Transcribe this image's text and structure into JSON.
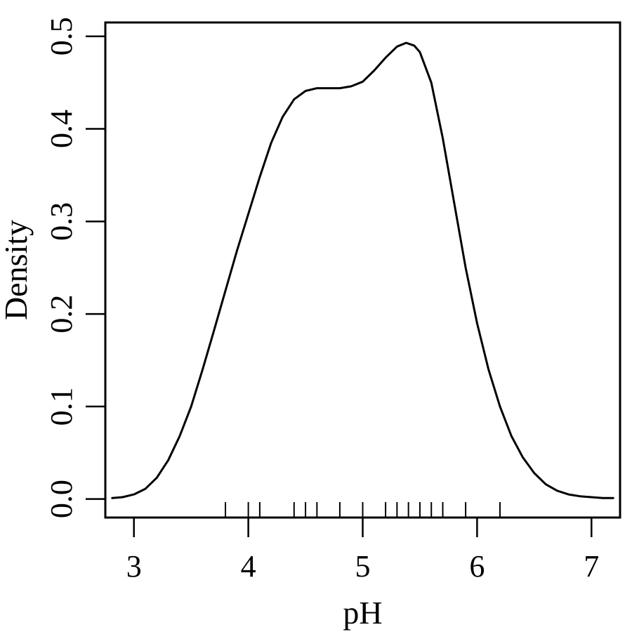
{
  "chart_data": {
    "type": "line",
    "title": "",
    "xlabel": "pH",
    "ylabel": "Density",
    "xlim": [
      2.75,
      7.25
    ],
    "ylim": [
      -0.02,
      0.515
    ],
    "grid": false,
    "legend": "none",
    "x_ticks": [
      3,
      4,
      5,
      6,
      7
    ],
    "x_tick_labels": [
      "3",
      "4",
      "5",
      "6",
      "7"
    ],
    "y_ticks": [
      0.0,
      0.1,
      0.2,
      0.3,
      0.4,
      0.5
    ],
    "y_tick_labels": [
      "0.0",
      "0.1",
      "0.2",
      "0.3",
      "0.4",
      "0.5"
    ],
    "series": [
      {
        "x": [
          2.81,
          2.9,
          3.0,
          3.1,
          3.2,
          3.3,
          3.4,
          3.5,
          3.6,
          3.7,
          3.8,
          3.9,
          4.0,
          4.1,
          4.2,
          4.3,
          4.4,
          4.5,
          4.6,
          4.7,
          4.8,
          4.9,
          5.0,
          5.1,
          5.2,
          5.3,
          5.38,
          5.45,
          5.5,
          5.6,
          5.7,
          5.8,
          5.9,
          6.0,
          6.1,
          6.2,
          6.3,
          6.4,
          6.5,
          6.6,
          6.7,
          6.8,
          6.9,
          7.0,
          7.1,
          7.19
        ],
        "y": [
          0.001,
          0.002,
          0.005,
          0.011,
          0.023,
          0.042,
          0.068,
          0.1,
          0.14,
          0.182,
          0.225,
          0.268,
          0.308,
          0.348,
          0.385,
          0.413,
          0.432,
          0.441,
          0.444,
          0.444,
          0.444,
          0.446,
          0.451,
          0.463,
          0.477,
          0.489,
          0.493,
          0.49,
          0.483,
          0.45,
          0.39,
          0.32,
          0.25,
          0.19,
          0.14,
          0.1,
          0.068,
          0.045,
          0.028,
          0.016,
          0.009,
          0.005,
          0.003,
          0.002,
          0.001,
          0.001
        ]
      }
    ],
    "rug": [
      3.8,
      4.0,
      4.1,
      4.4,
      4.5,
      4.6,
      4.8,
      5.0,
      5.2,
      5.3,
      5.4,
      5.5,
      5.6,
      5.7,
      5.9,
      6.2
    ]
  }
}
